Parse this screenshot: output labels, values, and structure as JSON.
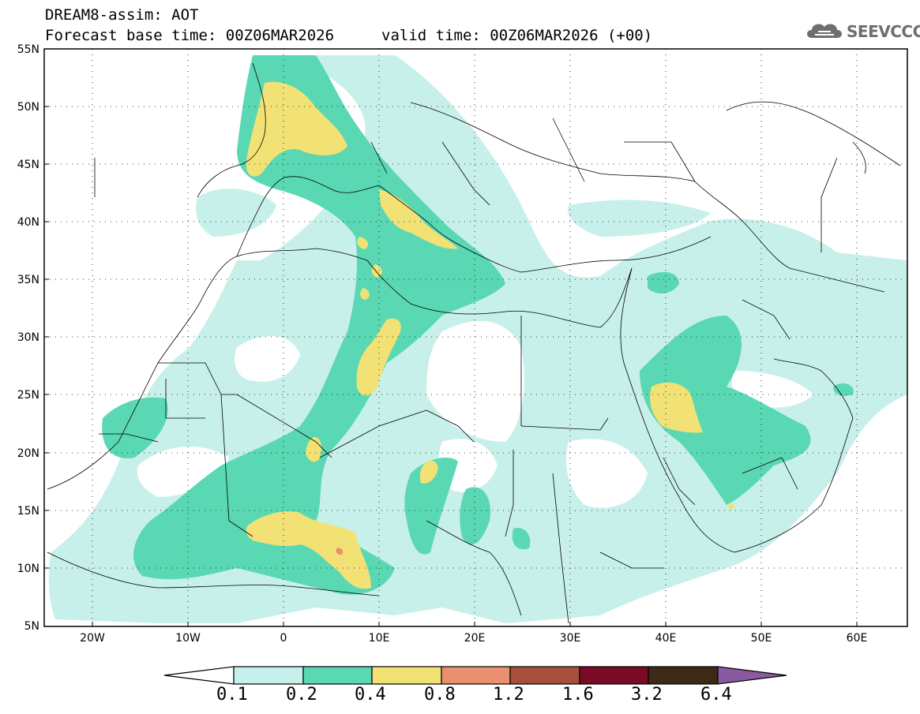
{
  "header": {
    "title_line1": "DREAM8-assim: AOT",
    "title_line2": "Forecast base time: 00Z06MAR2026",
    "valid_time": "valid time: 00Z06MAR2026 (+00)",
    "logo_text": "SEEVCCC"
  },
  "map": {
    "projection": "lat-lon",
    "lon_range": [
      -25,
      65
    ],
    "lat_range": [
      5,
      55
    ],
    "gridlines": "dotted",
    "lat_labels": [
      "55N",
      "50N",
      "45N",
      "40N",
      "35N",
      "30N",
      "25N",
      "20N",
      "15N",
      "10N",
      "5N"
    ],
    "lon_labels": [
      "20W",
      "10W",
      "0",
      "10E",
      "20E",
      "30E",
      "40E",
      "50E",
      "60E"
    ],
    "field": "Aerosol Optical Thickness (AOT)"
  },
  "colorbar": {
    "labels": [
      "0.1",
      "0.2",
      "0.4",
      "0.8",
      "1.2",
      "1.6",
      "3.2",
      "6.4"
    ],
    "colors": [
      "#ffffff",
      "#c8f0ea",
      "#5ad8b4",
      "#f2e275",
      "#e89070",
      "#a6503c",
      "#7a0b27",
      "#3d2a16",
      "#8a5aa0"
    ]
  },
  "colors": {
    "c01": "#c8f0ea",
    "c02": "#5ad8b4",
    "c04": "#f2e275",
    "c08": "#e89070"
  }
}
